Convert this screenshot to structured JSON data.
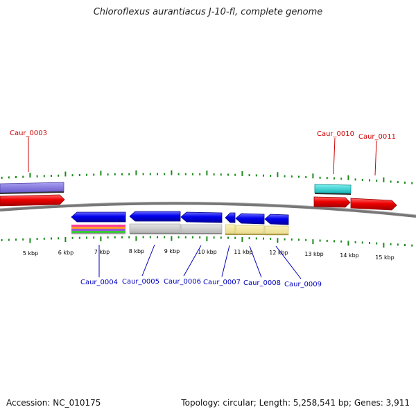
{
  "title": "Chloroflexus aurantiacus J-10-fl, complete genome",
  "footer": {
    "accession": "Accession: NC_010175",
    "summary": "Topology: circular; Length: 5,258,541 bp; Genes: 3,911"
  },
  "colors": {
    "top_label": "#cc0000",
    "bottom_label": "#0000bb",
    "tick": "#1a8a1a",
    "backbone": "#777777",
    "forward_gene": "#ee0000",
    "reverse_gene": "#0000ee"
  },
  "ruler": {
    "unit": "kbp",
    "labels": [
      "5 kbp",
      "6 kbp",
      "7 kbp",
      "8 kbp",
      "9 kbp",
      "10 kbp",
      "11 kbp",
      "12 kbp",
      "13 kbp",
      "14 kbp",
      "15 kbp"
    ]
  },
  "genes": {
    "top": [
      "Caur_0003",
      "Caur_0010",
      "Caur_0011"
    ],
    "bottom": [
      "Caur_0004",
      "Caur_0005",
      "Caur_0006",
      "Caur_0007",
      "Caur_0008",
      "Caur_0009"
    ]
  }
}
